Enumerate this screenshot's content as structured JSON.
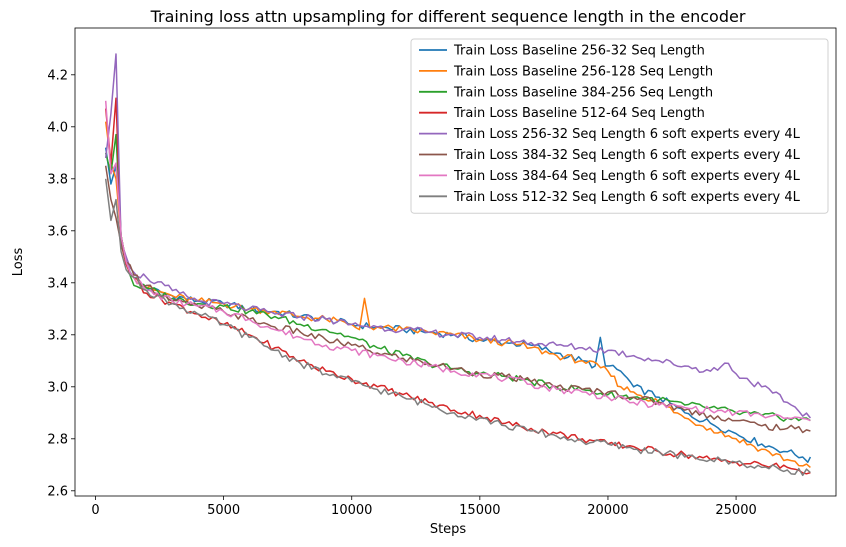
{
  "chart_data": {
    "type": "line",
    "title": "Training loss attn upsampling for different sequence length in the encoder",
    "xlabel": "Steps",
    "ylabel": "Loss",
    "xlim": [
      -800,
      28900
    ],
    "ylim": [
      2.58,
      4.38
    ],
    "xticks": [
      0,
      5000,
      10000,
      15000,
      20000,
      25000
    ],
    "yticks": [
      2.6,
      2.8,
      3.0,
      3.2,
      3.4,
      3.6,
      3.8,
      4.0,
      4.2
    ],
    "grid": false,
    "legend_position": "top-right",
    "series": [
      {
        "name": "Train Loss Baseline 256-32 Seq Length",
        "color": "#1f77b4",
        "points": [
          [
            400,
            3.92
          ],
          [
            600,
            3.78
          ],
          [
            800,
            3.85
          ],
          [
            1000,
            3.58
          ],
          [
            1200,
            3.48
          ],
          [
            1500,
            3.42
          ],
          [
            2000,
            3.38
          ],
          [
            3000,
            3.35
          ],
          [
            4000,
            3.33
          ],
          [
            5000,
            3.32
          ],
          [
            6000,
            3.3
          ],
          [
            7000,
            3.29
          ],
          [
            8000,
            3.27
          ],
          [
            9000,
            3.26
          ],
          [
            10000,
            3.24
          ],
          [
            11000,
            3.23
          ],
          [
            12000,
            3.22
          ],
          [
            13000,
            3.21
          ],
          [
            14000,
            3.2
          ],
          [
            15000,
            3.18
          ],
          [
            16000,
            3.17
          ],
          [
            17000,
            3.16
          ],
          [
            18000,
            3.13
          ],
          [
            19000,
            3.1
          ],
          [
            19500,
            3.08
          ],
          [
            19700,
            3.19
          ],
          [
            19900,
            3.08
          ],
          [
            20500,
            3.06
          ],
          [
            21000,
            3.0
          ],
          [
            22000,
            2.96
          ],
          [
            23000,
            2.9
          ],
          [
            24000,
            2.86
          ],
          [
            25000,
            2.82
          ],
          [
            26000,
            2.78
          ],
          [
            27000,
            2.75
          ],
          [
            27600,
            2.73
          ],
          [
            27800,
            2.71
          ],
          [
            27900,
            2.73
          ]
        ]
      },
      {
        "name": "Train Loss Baseline 256-128 Seq Length",
        "color": "#ff7f0e",
        "points": [
          [
            400,
            4.02
          ],
          [
            600,
            3.86
          ],
          [
            800,
            3.8
          ],
          [
            1000,
            3.58
          ],
          [
            1200,
            3.48
          ],
          [
            1500,
            3.42
          ],
          [
            2000,
            3.38
          ],
          [
            3000,
            3.35
          ],
          [
            4000,
            3.33
          ],
          [
            5000,
            3.32
          ],
          [
            6000,
            3.3
          ],
          [
            7000,
            3.29
          ],
          [
            8000,
            3.27
          ],
          [
            9000,
            3.26
          ],
          [
            10000,
            3.24
          ],
          [
            10300,
            3.22
          ],
          [
            10500,
            3.34
          ],
          [
            10700,
            3.23
          ],
          [
            11000,
            3.23
          ],
          [
            12000,
            3.22
          ],
          [
            13000,
            3.21
          ],
          [
            14000,
            3.2
          ],
          [
            15000,
            3.18
          ],
          [
            16000,
            3.17
          ],
          [
            17000,
            3.15
          ],
          [
            18000,
            3.12
          ],
          [
            19000,
            3.1
          ],
          [
            20000,
            3.06
          ],
          [
            20500,
            3.0
          ],
          [
            21000,
            2.98
          ],
          [
            22000,
            2.94
          ],
          [
            23000,
            2.88
          ],
          [
            24000,
            2.84
          ],
          [
            25000,
            2.8
          ],
          [
            26000,
            2.76
          ],
          [
            27000,
            2.72
          ],
          [
            27900,
            2.69
          ]
        ]
      },
      {
        "name": "Train Loss Baseline 384-256 Seq Length",
        "color": "#2ca02c",
        "points": [
          [
            400,
            3.9
          ],
          [
            600,
            3.82
          ],
          [
            800,
            3.97
          ],
          [
            1000,
            3.58
          ],
          [
            1200,
            3.48
          ],
          [
            1500,
            3.39
          ],
          [
            2000,
            3.38
          ],
          [
            3000,
            3.34
          ],
          [
            4000,
            3.32
          ],
          [
            5000,
            3.31
          ],
          [
            6000,
            3.29
          ],
          [
            7000,
            3.27
          ],
          [
            8000,
            3.24
          ],
          [
            9000,
            3.22
          ],
          [
            10000,
            3.19
          ],
          [
            11000,
            3.15
          ],
          [
            12000,
            3.12
          ],
          [
            13000,
            3.09
          ],
          [
            14000,
            3.07
          ],
          [
            15000,
            3.05
          ],
          [
            16000,
            3.04
          ],
          [
            17000,
            3.02
          ],
          [
            18000,
            3.0
          ],
          [
            19000,
            2.99
          ],
          [
            20000,
            2.97
          ],
          [
            21000,
            2.96
          ],
          [
            22000,
            2.95
          ],
          [
            23000,
            2.93
          ],
          [
            24000,
            2.92
          ],
          [
            25000,
            2.9
          ],
          [
            26000,
            2.89
          ],
          [
            27000,
            2.88
          ],
          [
            27900,
            2.87
          ]
        ]
      },
      {
        "name": "Train Loss Baseline 512-64 Seq Length",
        "color": "#d62728",
        "points": [
          [
            400,
            4.07
          ],
          [
            600,
            3.86
          ],
          [
            800,
            4.11
          ],
          [
            1000,
            3.55
          ],
          [
            1200,
            3.47
          ],
          [
            1500,
            3.42
          ],
          [
            2000,
            3.36
          ],
          [
            3000,
            3.32
          ],
          [
            4000,
            3.28
          ],
          [
            5000,
            3.24
          ],
          [
            6000,
            3.2
          ],
          [
            7000,
            3.15
          ],
          [
            8000,
            3.1
          ],
          [
            9000,
            3.06
          ],
          [
            10000,
            3.03
          ],
          [
            11000,
            3.0
          ],
          [
            12000,
            2.97
          ],
          [
            13000,
            2.94
          ],
          [
            14000,
            2.91
          ],
          [
            15000,
            2.89
          ],
          [
            16000,
            2.86
          ],
          [
            17000,
            2.84
          ],
          [
            18000,
            2.82
          ],
          [
            19000,
            2.8
          ],
          [
            20000,
            2.78
          ],
          [
            21000,
            2.77
          ],
          [
            22000,
            2.75
          ],
          [
            23000,
            2.74
          ],
          [
            24000,
            2.72
          ],
          [
            25000,
            2.71
          ],
          [
            26000,
            2.7
          ],
          [
            27000,
            2.69
          ],
          [
            27900,
            2.67
          ]
        ]
      },
      {
        "name": "Train Loss 256-32 Seq Length 6 soft experts every 4L",
        "color": "#9467bd",
        "points": [
          [
            400,
            3.88
          ],
          [
            600,
            4.05
          ],
          [
            800,
            4.28
          ],
          [
            1000,
            3.56
          ],
          [
            1200,
            3.5
          ],
          [
            1500,
            3.44
          ],
          [
            2000,
            3.42
          ],
          [
            3000,
            3.37
          ],
          [
            4000,
            3.33
          ],
          [
            5000,
            3.32
          ],
          [
            6000,
            3.3
          ],
          [
            7000,
            3.28
          ],
          [
            8000,
            3.27
          ],
          [
            9000,
            3.26
          ],
          [
            10000,
            3.24
          ],
          [
            11000,
            3.23
          ],
          [
            12000,
            3.22
          ],
          [
            13000,
            3.21
          ],
          [
            14000,
            3.2
          ],
          [
            15000,
            3.19
          ],
          [
            16000,
            3.18
          ],
          [
            17000,
            3.17
          ],
          [
            18000,
            3.16
          ],
          [
            19000,
            3.15
          ],
          [
            20000,
            3.14
          ],
          [
            21000,
            3.12
          ],
          [
            22000,
            3.1
          ],
          [
            23000,
            3.08
          ],
          [
            24000,
            3.06
          ],
          [
            24700,
            3.09
          ],
          [
            25000,
            3.05
          ],
          [
            26000,
            3.0
          ],
          [
            27000,
            2.94
          ],
          [
            27900,
            2.88
          ]
        ]
      },
      {
        "name": "Train Loss 384-32 Seq Length 6 soft experts every 4L",
        "color": "#8c564b",
        "points": [
          [
            400,
            3.85
          ],
          [
            600,
            3.72
          ],
          [
            800,
            3.65
          ],
          [
            1000,
            3.55
          ],
          [
            1200,
            3.48
          ],
          [
            1500,
            3.43
          ],
          [
            2000,
            3.39
          ],
          [
            3000,
            3.33
          ],
          [
            4000,
            3.31
          ],
          [
            5000,
            3.29
          ],
          [
            6000,
            3.26
          ],
          [
            7000,
            3.23
          ],
          [
            8000,
            3.21
          ],
          [
            9000,
            3.18
          ],
          [
            10000,
            3.16
          ],
          [
            11000,
            3.13
          ],
          [
            12000,
            3.11
          ],
          [
            13000,
            3.09
          ],
          [
            14000,
            3.07
          ],
          [
            15000,
            3.05
          ],
          [
            16000,
            3.04
          ],
          [
            17000,
            3.02
          ],
          [
            18000,
            3.0
          ],
          [
            19000,
            2.99
          ],
          [
            20000,
            2.98
          ],
          [
            21000,
            2.96
          ],
          [
            22000,
            2.94
          ],
          [
            23000,
            2.91
          ],
          [
            24000,
            2.89
          ],
          [
            25000,
            2.87
          ],
          [
            26000,
            2.85
          ],
          [
            27000,
            2.84
          ],
          [
            27900,
            2.83
          ]
        ]
      },
      {
        "name": "Train Loss 384-64 Seq Length 6 soft experts every 4L",
        "color": "#e377c2",
        "points": [
          [
            400,
            4.1
          ],
          [
            600,
            3.82
          ],
          [
            800,
            3.86
          ],
          [
            1000,
            3.58
          ],
          [
            1200,
            3.48
          ],
          [
            1500,
            3.42
          ],
          [
            2000,
            3.37
          ],
          [
            3000,
            3.33
          ],
          [
            4000,
            3.31
          ],
          [
            5000,
            3.29
          ],
          [
            6000,
            3.26
          ],
          [
            7000,
            3.22
          ],
          [
            8000,
            3.19
          ],
          [
            9000,
            3.16
          ],
          [
            10000,
            3.14
          ],
          [
            11000,
            3.12
          ],
          [
            12000,
            3.1
          ],
          [
            13000,
            3.08
          ],
          [
            14000,
            3.06
          ],
          [
            15000,
            3.05
          ],
          [
            16000,
            3.03
          ],
          [
            17000,
            3.01
          ],
          [
            18000,
            2.99
          ],
          [
            19000,
            2.98
          ],
          [
            20000,
            2.96
          ],
          [
            21000,
            2.94
          ],
          [
            22000,
            2.93
          ],
          [
            23000,
            2.92
          ],
          [
            24000,
            2.91
          ],
          [
            25000,
            2.9
          ],
          [
            26000,
            2.89
          ],
          [
            27000,
            2.88
          ],
          [
            27900,
            2.87
          ]
        ]
      },
      {
        "name": "Train Loss 512-32 Seq Length 6 soft experts every 4L",
        "color": "#7f7f7f",
        "points": [
          [
            400,
            3.8
          ],
          [
            600,
            3.64
          ],
          [
            800,
            3.72
          ],
          [
            1000,
            3.52
          ],
          [
            1200,
            3.45
          ],
          [
            1500,
            3.42
          ],
          [
            2000,
            3.37
          ],
          [
            3000,
            3.32
          ],
          [
            4000,
            3.28
          ],
          [
            5000,
            3.24
          ],
          [
            6000,
            3.19
          ],
          [
            7000,
            3.14
          ],
          [
            8000,
            3.09
          ],
          [
            9000,
            3.05
          ],
          [
            10000,
            3.02
          ],
          [
            11000,
            2.99
          ],
          [
            12000,
            2.96
          ],
          [
            13000,
            2.93
          ],
          [
            14000,
            2.9
          ],
          [
            15000,
            2.88
          ],
          [
            16000,
            2.85
          ],
          [
            17000,
            2.83
          ],
          [
            18000,
            2.81
          ],
          [
            19000,
            2.79
          ],
          [
            20000,
            2.78
          ],
          [
            21000,
            2.76
          ],
          [
            22000,
            2.75
          ],
          [
            23000,
            2.73
          ],
          [
            24000,
            2.72
          ],
          [
            25000,
            2.71
          ],
          [
            26000,
            2.69
          ],
          [
            27000,
            2.68
          ],
          [
            27900,
            2.67
          ]
        ]
      }
    ]
  }
}
